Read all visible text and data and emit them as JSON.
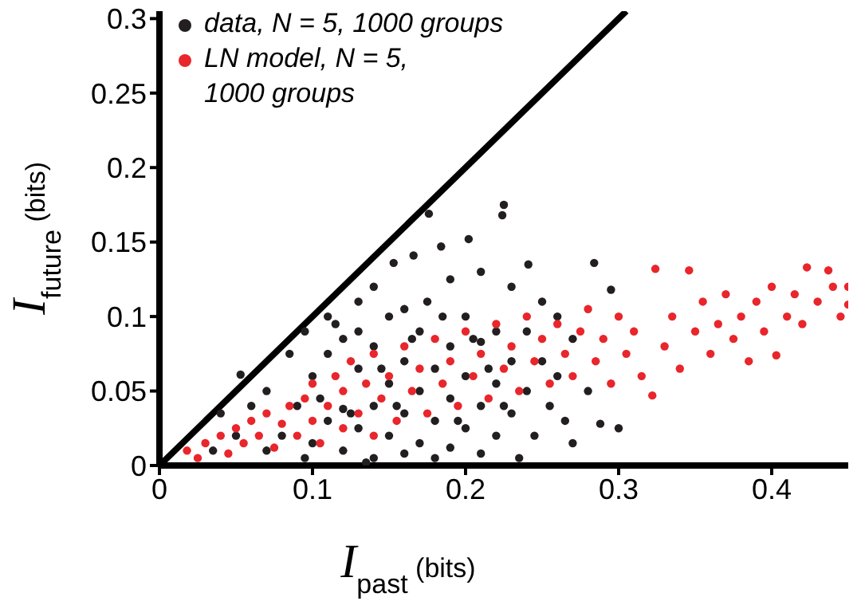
{
  "chart_data": {
    "type": "scatter",
    "xlabel": "I$_{past}$ (bits)",
    "ylabel": "I$_{future}$ (bits)",
    "xlim": [
      0,
      0.45
    ],
    "ylim": [
      0,
      0.305
    ],
    "xticks": [
      0,
      0.1,
      0.2,
      0.3,
      0.4
    ],
    "yticks": [
      0,
      0.05,
      0.1,
      0.15,
      0.2,
      0.25,
      0.3
    ],
    "legend": "top left",
    "series": [
      {
        "name": "data, N = 5, 1000 groups",
        "type": "scatter",
        "marker": "circle",
        "color": "#231f20",
        "x": [
          0.053,
          0.07,
          0.085,
          0.095,
          0.11,
          0.12,
          0.13,
          0.14,
          0.153,
          0.16,
          0.166,
          0.176,
          0.184,
          0.19,
          0.202,
          0.21,
          0.224,
          0.225,
          0.23,
          0.241,
          0.25,
          0.26,
          0.284,
          0.295,
          0.27,
          0.288,
          0.3,
          0.28,
          0.265,
          0.08,
          0.09,
          0.1,
          0.1,
          0.11,
          0.11,
          0.12,
          0.12,
          0.13,
          0.13,
          0.13,
          0.14,
          0.14,
          0.14,
          0.15,
          0.15,
          0.15,
          0.16,
          0.16,
          0.16,
          0.17,
          0.17,
          0.17,
          0.175,
          0.18,
          0.18,
          0.18,
          0.19,
          0.19,
          0.19,
          0.2,
          0.2,
          0.2,
          0.21,
          0.21,
          0.21,
          0.22,
          0.22,
          0.22,
          0.23,
          0.23,
          0.235,
          0.24,
          0.24,
          0.245,
          0.25,
          0.255,
          0.26,
          0.27,
          0.06,
          0.07,
          0.05,
          0.04,
          0.035,
          0.095,
          0.115,
          0.125,
          0.145,
          0.155,
          0.165,
          0.185,
          0.195,
          0.205,
          0.215,
          0.225,
          0.105,
          0.135
        ],
        "values": [
          0.061,
          0.05,
          0.075,
          0.09,
          0.1,
          0.085,
          0.11,
          0.12,
          0.136,
          0.105,
          0.141,
          0.169,
          0.147,
          0.125,
          0.152,
          0.13,
          0.168,
          0.175,
          0.12,
          0.135,
          0.11,
          0.1,
          0.136,
          0.118,
          0.085,
          0.028,
          0.025,
          0.05,
          0.03,
          0.02,
          0.04,
          0.06,
          0.015,
          0.03,
          0.075,
          0.038,
          0.01,
          0.065,
          0.025,
          0.09,
          0.04,
          0.005,
          0.08,
          0.055,
          0.02,
          0.1,
          0.07,
          0.035,
          0.008,
          0.09,
          0.05,
          0.015,
          0.11,
          0.065,
          0.03,
          0.005,
          0.08,
          0.045,
          0.012,
          0.1,
          0.06,
          0.025,
          0.083,
          0.04,
          0.008,
          0.09,
          0.055,
          0.02,
          0.07,
          0.035,
          0.005,
          0.09,
          0.05,
          0.02,
          0.07,
          0.04,
          0.06,
          0.015,
          0.04,
          0.01,
          0.02,
          0.035,
          0.01,
          0.005,
          0.095,
          0.035,
          0.065,
          0.04,
          0.085,
          0.1,
          0.03,
          0.085,
          0.065,
          0.04,
          0.045,
          0.002
        ]
      },
      {
        "name": "LN model, N = 5, 1000 groups",
        "type": "scatter",
        "marker": "circle",
        "color": "#e8262b",
        "x": [
          0.018,
          0.025,
          0.03,
          0.04,
          0.045,
          0.05,
          0.055,
          0.06,
          0.065,
          0.07,
          0.075,
          0.08,
          0.085,
          0.09,
          0.095,
          0.1,
          0.1,
          0.105,
          0.11,
          0.115,
          0.12,
          0.12,
          0.125,
          0.13,
          0.135,
          0.14,
          0.14,
          0.145,
          0.15,
          0.155,
          0.16,
          0.165,
          0.17,
          0.175,
          0.18,
          0.185,
          0.19,
          0.195,
          0.2,
          0.205,
          0.21,
          0.215,
          0.22,
          0.225,
          0.23,
          0.235,
          0.24,
          0.245,
          0.25,
          0.255,
          0.26,
          0.265,
          0.27,
          0.275,
          0.28,
          0.285,
          0.29,
          0.295,
          0.3,
          0.305,
          0.31,
          0.315,
          0.322,
          0.324,
          0.33,
          0.335,
          0.34,
          0.346,
          0.35,
          0.355,
          0.36,
          0.365,
          0.37,
          0.375,
          0.38,
          0.385,
          0.39,
          0.395,
          0.4,
          0.403,
          0.41,
          0.415,
          0.42,
          0.423,
          0.43,
          0.437,
          0.44,
          0.445,
          0.45,
          0.45
        ],
        "values": [
          0.01,
          0.005,
          0.015,
          0.02,
          0.008,
          0.025,
          0.015,
          0.03,
          0.02,
          0.035,
          0.012,
          0.028,
          0.04,
          0.02,
          0.045,
          0.03,
          0.055,
          0.015,
          0.04,
          0.06,
          0.025,
          0.05,
          0.07,
          0.035,
          0.055,
          0.02,
          0.075,
          0.045,
          0.06,
          0.03,
          0.08,
          0.05,
          0.065,
          0.035,
          0.085,
          0.055,
          0.07,
          0.04,
          0.09,
          0.06,
          0.075,
          0.045,
          0.095,
          0.065,
          0.08,
          0.05,
          0.1,
          0.07,
          0.085,
          0.055,
          0.095,
          0.075,
          0.06,
          0.09,
          0.105,
          0.07,
          0.085,
          0.055,
          0.1,
          0.075,
          0.09,
          0.06,
          0.047,
          0.132,
          0.08,
          0.1,
          0.065,
          0.131,
          0.09,
          0.11,
          0.075,
          0.095,
          0.115,
          0.085,
          0.1,
          0.07,
          0.11,
          0.09,
          0.12,
          0.074,
          0.1,
          0.115,
          0.095,
          0.133,
          0.11,
          0.131,
          0.12,
          0.1,
          0.108,
          0.12
        ]
      },
      {
        "type": "line",
        "marker": "none",
        "line_style": "solid",
        "color": "#000000",
        "x": [
          0,
          0.305
        ],
        "values": [
          0,
          0.305
        ]
      }
    ]
  }
}
